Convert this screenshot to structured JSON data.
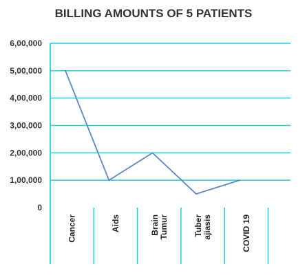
{
  "chart_data": {
    "type": "line",
    "title": "BILLING AMOUNTS OF 5 PATIENTS",
    "categories": [
      [
        "Cancer"
      ],
      [
        "Aids"
      ],
      [
        "Brain",
        "Tumur"
      ],
      [
        "Tuber",
        "ajiasis"
      ],
      [
        "COVID 19"
      ]
    ],
    "values": [
      500000,
      100000,
      200000,
      50000,
      100000
    ],
    "ylim": [
      0,
      600000
    ],
    "yticks": [
      0,
      100000,
      200000,
      300000,
      400000,
      500000,
      600000
    ],
    "ytick_labels": [
      "0",
      "1,00,000",
      "2,00,000",
      "3,00,000",
      "4,00,000",
      "5,00,000",
      "6,00,000"
    ],
    "grid": true,
    "colors": {
      "grid": "#1ad1e5",
      "line": "#5b87c5"
    }
  }
}
